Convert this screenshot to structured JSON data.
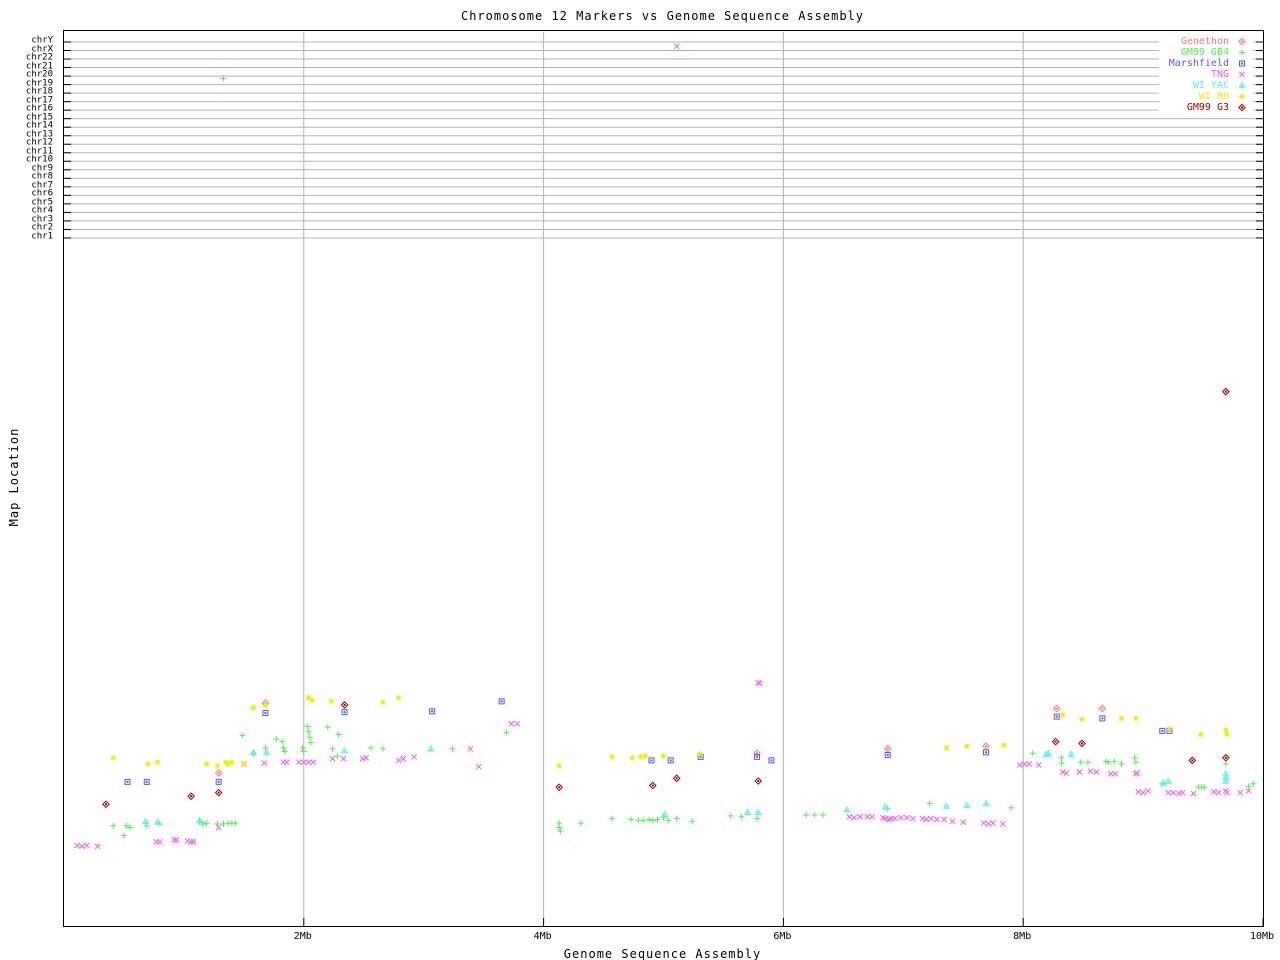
{
  "title": "Chromosome 12 Markers vs Genome Sequence Assembly",
  "x_axis": {
    "label": "Genome Sequence Assembly",
    "tick_labels": [
      "2Mb",
      "4Mb",
      "6Mb",
      "8Mb",
      "10Mb"
    ],
    "tick_mb": [
      2,
      4,
      6,
      8,
      10
    ],
    "gridline_mb": [
      2,
      4,
      6,
      8
    ],
    "range_mb": [
      0,
      10
    ]
  },
  "y_axis": {
    "label": "Map Location",
    "chromosome_rows_top_to_bottom": [
      "chrY",
      "chrX",
      "chr22",
      "chr21",
      "chr20",
      "chr19",
      "chr18",
      "chr17",
      "chr16",
      "chr15",
      "chr14",
      "chr13",
      "chr12",
      "chr11",
      "chr10",
      "chr9",
      "chr8",
      "chr7",
      "chr6",
      "chr5",
      "chr4",
      "chr3",
      "chr2",
      "chr1"
    ]
  },
  "colors": {
    "grid": "#b2b2b2",
    "axis": "#000000",
    "background": "#ffffff"
  },
  "chart_data": {
    "type": "scatter",
    "title": "Chromosome 12 Markers vs Genome Sequence Assembly",
    "xlabel": "Genome Sequence Assembly",
    "ylabel": "Map Location",
    "xlim": [
      0,
      10
    ],
    "x_units": "Mb",
    "grid": "vertical lines at 2,4,6,8 Mb; 24 horizontal chromosome rows at top",
    "legend_position": "top-right inset, white background",
    "y_encoding_note": "y values are fraction of plot height measured from the top border (the source y axis has no numeric tick labels; top band rows are chromosome assignments chrY..chr1)",
    "series": [
      {
        "name": "Genethon",
        "marker": "diamond-dot",
        "color": "#f87878",
        "points": [
          [
            1.29,
            0.829
          ],
          [
            1.68,
            0.751
          ],
          [
            5.78,
            0.807
          ],
          [
            6.87,
            0.802
          ],
          [
            7.69,
            0.799
          ],
          [
            8.28,
            0.757
          ],
          [
            8.66,
            0.757
          ]
        ]
      },
      {
        "name": "GM99 GB4",
        "marker": "plus",
        "color": "#4ef04e",
        "points": [
          [
            1.33,
            0.053
          ],
          [
            0.41,
            0.888
          ],
          [
            0.5,
            0.899
          ],
          [
            0.52,
            0.888
          ],
          [
            0.55,
            0.89
          ],
          [
            0.69,
            0.888
          ],
          [
            0.8,
            0.886
          ],
          [
            1.13,
            0.884
          ],
          [
            1.16,
            0.886
          ],
          [
            1.19,
            0.885
          ],
          [
            1.28,
            0.886
          ],
          [
            1.33,
            0.886
          ],
          [
            1.37,
            0.885
          ],
          [
            1.4,
            0.885
          ],
          [
            1.43,
            0.885
          ],
          [
            1.49,
            0.787
          ],
          [
            1.58,
            0.808
          ],
          [
            1.68,
            0.801
          ],
          [
            1.77,
            0.791
          ],
          [
            1.82,
            0.794
          ],
          [
            1.83,
            0.801
          ],
          [
            1.84,
            0.805
          ],
          [
            1.99,
            0.801
          ],
          [
            2.0,
            0.805
          ],
          [
            2.03,
            0.777
          ],
          [
            2.04,
            0.783
          ],
          [
            2.05,
            0.789
          ],
          [
            2.06,
            0.795
          ],
          [
            2.2,
            0.778
          ],
          [
            2.29,
            0.786
          ],
          [
            2.24,
            0.802
          ],
          [
            2.28,
            0.81
          ],
          [
            2.56,
            0.801
          ],
          [
            2.66,
            0.802
          ],
          [
            3.24,
            0.802
          ],
          [
            3.69,
            0.784
          ],
          [
            4.13,
            0.885
          ],
          [
            4.13,
            0.89
          ],
          [
            4.14,
            0.894
          ],
          [
            4.31,
            0.885
          ],
          [
            4.57,
            0.88
          ],
          [
            4.73,
            0.881
          ],
          [
            4.79,
            0.882
          ],
          [
            4.83,
            0.882
          ],
          [
            4.88,
            0.881
          ],
          [
            4.91,
            0.882
          ],
          [
            4.95,
            0.881
          ],
          [
            5.0,
            0.879
          ],
          [
            5.04,
            0.882
          ],
          [
            5.11,
            0.88
          ],
          [
            5.24,
            0.883
          ],
          [
            5.56,
            0.877
          ],
          [
            5.65,
            0.878
          ],
          [
            5.78,
            0.88
          ],
          [
            6.19,
            0.876
          ],
          [
            6.26,
            0.876
          ],
          [
            6.33,
            0.876
          ],
          [
            6.87,
            0.869
          ],
          [
            7.22,
            0.863
          ],
          [
            7.9,
            0.868
          ],
          [
            8.08,
            0.807
          ],
          [
            8.32,
            0.812
          ],
          [
            8.32,
            0.818
          ],
          [
            8.48,
            0.817
          ],
          [
            8.54,
            0.817
          ],
          [
            8.69,
            0.816
          ],
          [
            8.71,
            0.817
          ],
          [
            8.76,
            0.816
          ],
          [
            8.82,
            0.819
          ],
          [
            8.93,
            0.812
          ],
          [
            8.94,
            0.817
          ],
          [
            9.16,
            0.841
          ],
          [
            9.46,
            0.845
          ],
          [
            9.49,
            0.845
          ],
          [
            9.51,
            0.845
          ],
          [
            9.69,
            0.819
          ],
          [
            9.88,
            0.844
          ],
          [
            9.92,
            0.841
          ]
        ]
      },
      {
        "name": "Marshfield",
        "marker": "square-dot",
        "color": "#5555fa",
        "points": [
          [
            0.53,
            0.839
          ],
          [
            0.69,
            0.839
          ],
          [
            1.29,
            0.839
          ],
          [
            1.68,
            0.762
          ],
          [
            2.34,
            0.761
          ],
          [
            3.07,
            0.76
          ],
          [
            3.65,
            0.749
          ],
          [
            4.9,
            0.815
          ],
          [
            5.06,
            0.815
          ],
          [
            5.31,
            0.811
          ],
          [
            5.78,
            0.811
          ],
          [
            5.9,
            0.815
          ],
          [
            6.87,
            0.809
          ],
          [
            7.69,
            0.806
          ],
          [
            8.28,
            0.766
          ],
          [
            8.66,
            0.768
          ],
          [
            9.16,
            0.782
          ],
          [
            9.22,
            0.782
          ]
        ]
      },
      {
        "name": "TNG",
        "marker": "cross",
        "color": "#f05df0",
        "points": [
          [
            5.11,
            0.017
          ],
          [
            0.11,
            0.91
          ],
          [
            0.15,
            0.911
          ],
          [
            0.19,
            0.91
          ],
          [
            0.28,
            0.911
          ],
          [
            0.77,
            0.906
          ],
          [
            0.8,
            0.906
          ],
          [
            0.92,
            0.904
          ],
          [
            0.94,
            0.904
          ],
          [
            1.03,
            0.905
          ],
          [
            1.06,
            0.906
          ],
          [
            1.08,
            0.906
          ],
          [
            1.29,
            0.89
          ],
          [
            1.5,
            0.819
          ],
          [
            1.67,
            0.818
          ],
          [
            1.83,
            0.817
          ],
          [
            1.86,
            0.817
          ],
          [
            1.96,
            0.817
          ],
          [
            2.0,
            0.817
          ],
          [
            2.04,
            0.817
          ],
          [
            2.08,
            0.817
          ],
          [
            2.24,
            0.813
          ],
          [
            2.33,
            0.813
          ],
          [
            2.49,
            0.813
          ],
          [
            2.52,
            0.812
          ],
          [
            2.79,
            0.815
          ],
          [
            2.83,
            0.813
          ],
          [
            2.92,
            0.811
          ],
          [
            3.39,
            0.802
          ],
          [
            3.46,
            0.822
          ],
          [
            3.73,
            0.774
          ],
          [
            3.78,
            0.774
          ],
          [
            5.79,
            0.728
          ],
          [
            5.8,
            0.729
          ],
          [
            6.55,
            0.878
          ],
          [
            6.59,
            0.879
          ],
          [
            6.64,
            0.878
          ],
          [
            6.7,
            0.878
          ],
          [
            6.74,
            0.878
          ],
          [
            6.83,
            0.879
          ],
          [
            6.85,
            0.88
          ],
          [
            6.88,
            0.881
          ],
          [
            6.9,
            0.88
          ],
          [
            6.93,
            0.88
          ],
          [
            6.98,
            0.879
          ],
          [
            7.03,
            0.879
          ],
          [
            7.08,
            0.88
          ],
          [
            7.16,
            0.88
          ],
          [
            7.19,
            0.881
          ],
          [
            7.23,
            0.88
          ],
          [
            7.28,
            0.881
          ],
          [
            7.34,
            0.881
          ],
          [
            7.41,
            0.883
          ],
          [
            7.5,
            0.884
          ],
          [
            7.67,
            0.885
          ],
          [
            7.71,
            0.886
          ],
          [
            7.75,
            0.885
          ],
          [
            7.83,
            0.886
          ],
          [
            7.97,
            0.82
          ],
          [
            8.01,
            0.819
          ],
          [
            8.05,
            0.819
          ],
          [
            8.13,
            0.82
          ],
          [
            8.33,
            0.828
          ],
          [
            8.36,
            0.829
          ],
          [
            8.47,
            0.828
          ],
          [
            8.56,
            0.827
          ],
          [
            8.61,
            0.828
          ],
          [
            8.73,
            0.83
          ],
          [
            8.77,
            0.83
          ],
          [
            8.94,
            0.83
          ],
          [
            8.95,
            0.829
          ],
          [
            8.96,
            0.85
          ],
          [
            9.0,
            0.851
          ],
          [
            9.04,
            0.849
          ],
          [
            9.21,
            0.851
          ],
          [
            9.25,
            0.851
          ],
          [
            9.3,
            0.852
          ],
          [
            9.33,
            0.851
          ],
          [
            9.42,
            0.852
          ],
          [
            9.59,
            0.85
          ],
          [
            9.63,
            0.851
          ],
          [
            9.69,
            0.849
          ],
          [
            9.7,
            0.851
          ],
          [
            9.81,
            0.851
          ],
          [
            9.88,
            0.849
          ]
        ]
      },
      {
        "name": "WI YAC",
        "marker": "triangle-dot",
        "color": "#55f0f0",
        "points": [
          [
            0.68,
            0.883
          ],
          [
            0.78,
            0.884
          ],
          [
            1.13,
            0.882
          ],
          [
            1.58,
            0.806
          ],
          [
            1.69,
            0.806
          ],
          [
            2.34,
            0.804
          ],
          [
            3.06,
            0.802
          ],
          [
            5.01,
            0.875
          ],
          [
            5.7,
            0.873
          ],
          [
            5.79,
            0.873
          ],
          [
            6.53,
            0.87
          ],
          [
            6.85,
            0.867
          ],
          [
            7.36,
            0.866
          ],
          [
            7.53,
            0.865
          ],
          [
            7.69,
            0.863
          ],
          [
            8.19,
            0.808
          ],
          [
            8.21,
            0.807
          ],
          [
            8.4,
            0.808
          ],
          [
            9.17,
            0.84
          ],
          [
            9.21,
            0.838
          ],
          [
            9.69,
            0.83
          ],
          [
            9.69,
            0.834
          ],
          [
            9.69,
            0.838
          ]
        ]
      },
      {
        "name": "WI RH",
        "marker": "asterisk",
        "color": "#eded00",
        "points": [
          [
            0.41,
            0.812
          ],
          [
            0.7,
            0.819
          ],
          [
            0.78,
            0.817
          ],
          [
            1.19,
            0.819
          ],
          [
            1.28,
            0.821
          ],
          [
            1.35,
            0.817
          ],
          [
            1.37,
            0.819
          ],
          [
            1.4,
            0.817
          ],
          [
            1.5,
            0.819
          ],
          [
            1.58,
            0.756
          ],
          [
            1.68,
            0.753
          ],
          [
            2.04,
            0.745
          ],
          [
            2.07,
            0.748
          ],
          [
            2.23,
            0.749
          ],
          [
            2.66,
            0.75
          ],
          [
            2.79,
            0.745
          ],
          [
            4.13,
            0.821
          ],
          [
            4.57,
            0.811
          ],
          [
            4.74,
            0.812
          ],
          [
            4.81,
            0.811
          ],
          [
            4.85,
            0.81
          ],
          [
            5.0,
            0.81
          ],
          [
            5.3,
            0.808
          ],
          [
            7.36,
            0.801
          ],
          [
            7.53,
            0.799
          ],
          [
            7.84,
            0.798
          ],
          [
            8.33,
            0.764
          ],
          [
            8.49,
            0.769
          ],
          [
            8.82,
            0.768
          ],
          [
            8.94,
            0.768
          ],
          [
            9.22,
            0.78
          ],
          [
            9.48,
            0.786
          ],
          [
            9.69,
            0.781
          ],
          [
            9.7,
            0.786
          ]
        ]
      },
      {
        "name": "GM99 G3",
        "marker": "diamond-dot",
        "color": "#a00000",
        "points": [
          [
            9.69,
            0.403
          ],
          [
            0.35,
            0.864
          ],
          [
            1.06,
            0.855
          ],
          [
            1.29,
            0.851
          ],
          [
            2.34,
            0.753
          ],
          [
            4.13,
            0.845
          ],
          [
            4.91,
            0.843
          ],
          [
            5.11,
            0.835
          ],
          [
            5.79,
            0.838
          ],
          [
            8.27,
            0.794
          ],
          [
            8.49,
            0.796
          ],
          [
            9.41,
            0.815
          ],
          [
            9.69,
            0.812
          ]
        ]
      }
    ]
  }
}
